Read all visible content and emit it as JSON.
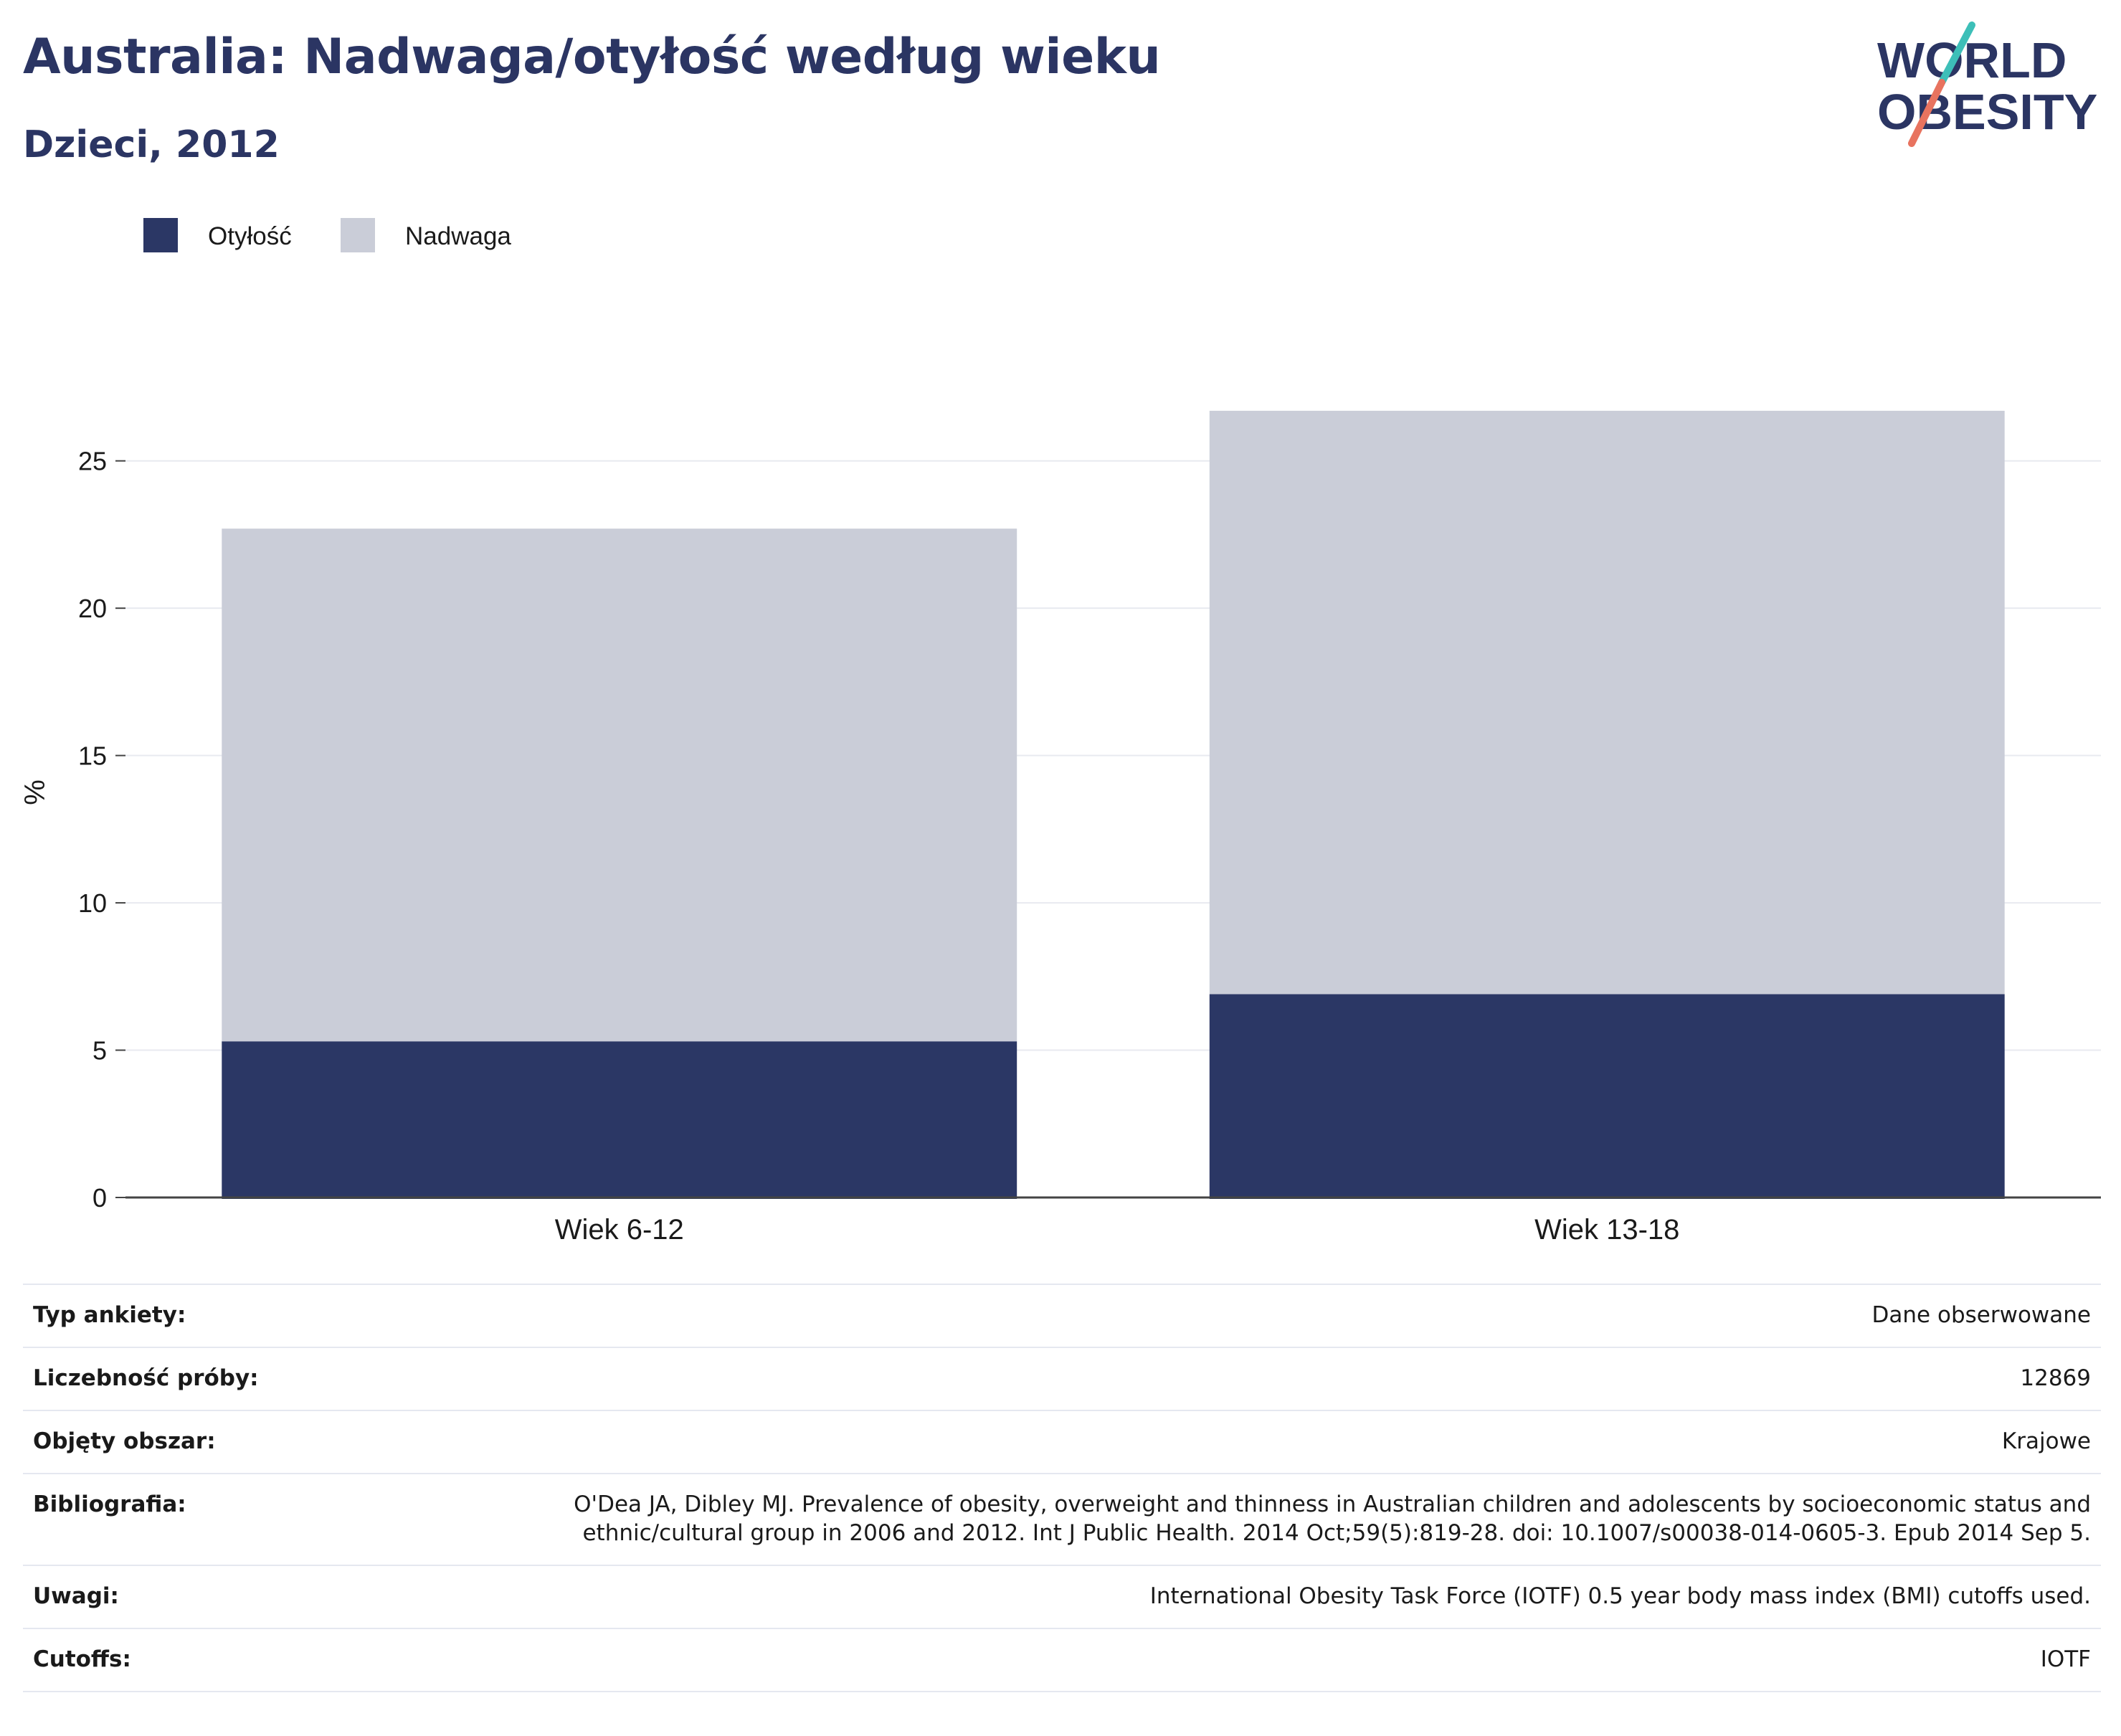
{
  "header": {
    "title": "Australia: Nadwaga/otyłość według wieku",
    "subtitle": "Dzieci, 2012"
  },
  "logo": {
    "line1": "WORLD",
    "line2": "OBESITY"
  },
  "colors": {
    "obesity": "#2b3765",
    "overweight": "#cacdd8",
    "title": "#2b3563",
    "accent_teal": "#3dbfb8",
    "accent_coral": "#e8735f"
  },
  "chart_data": {
    "type": "bar",
    "stacked": true,
    "categories": [
      "Wiek 6-12",
      "Wiek 13-18"
    ],
    "series": [
      {
        "name": "Otyłość",
        "values": [
          5.3,
          6.9
        ]
      },
      {
        "name": "Nadwaga",
        "values": [
          17.4,
          19.8
        ]
      }
    ],
    "ylabel": "%",
    "ylim": [
      0,
      27.5
    ],
    "yticks": [
      0,
      5,
      10,
      15,
      20,
      25
    ],
    "grid": true,
    "legend": "top-left"
  },
  "info": [
    {
      "label": "Typ ankiety:",
      "value": "Dane obserwowane"
    },
    {
      "label": "Liczebność próby:",
      "value": "12869"
    },
    {
      "label": "Objęty obszar:",
      "value": "Krajowe"
    },
    {
      "label": "Bibliografia:",
      "value": "O'Dea JA, Dibley MJ. Prevalence of obesity, overweight and thinness in Australian children and adolescents by socioeconomic status and ethnic/cultural group in 2006 and 2012. Int J Public Health. 2014 Oct;59(5):819-28. doi: 10.1007/s00038-014-0605-3. Epub 2014 Sep 5."
    },
    {
      "label": "Uwagi:",
      "value": "International Obesity Task Force (IOTF) 0.5 year body mass index (BMI) cutoffs used."
    },
    {
      "label": "Cutoffs:",
      "value": "IOTF"
    }
  ]
}
